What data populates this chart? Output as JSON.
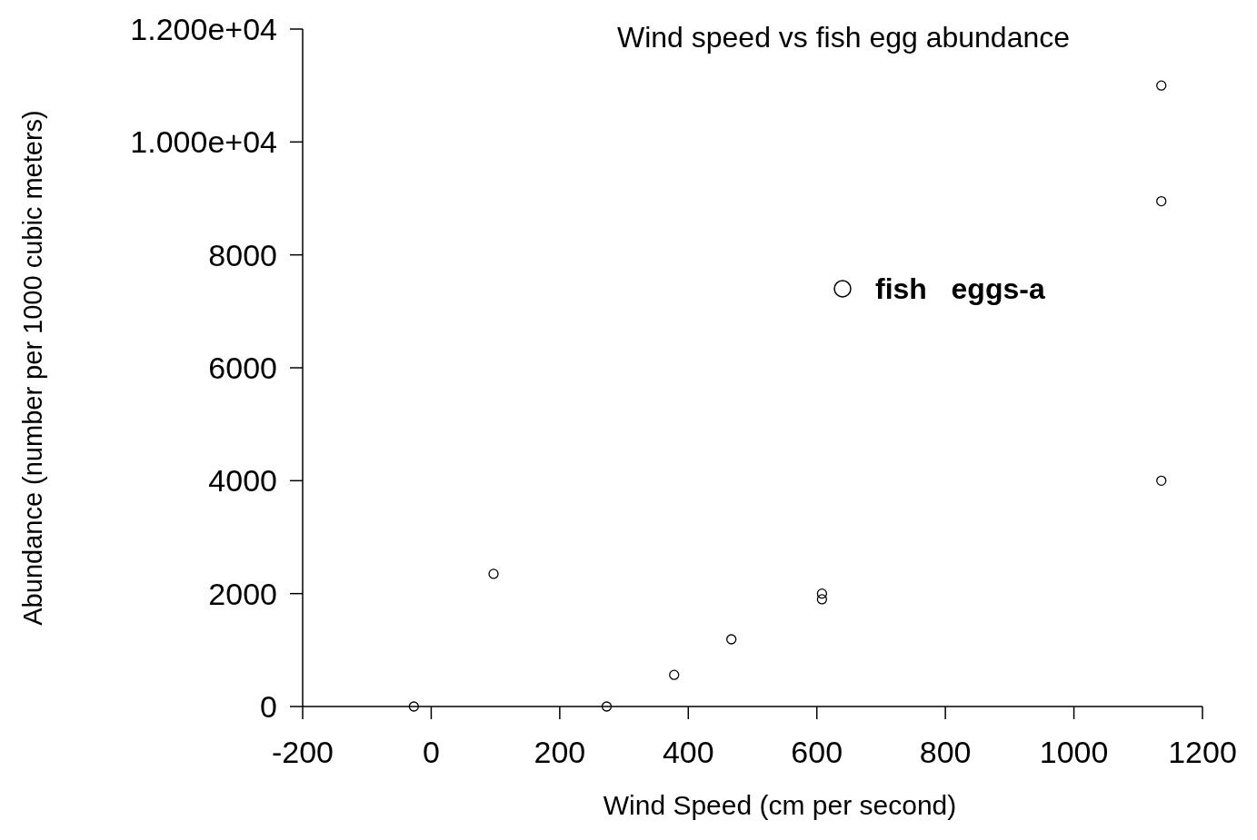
{
  "chart_data": {
    "type": "scatter",
    "title": "Wind speed vs fish egg abundance",
    "xlabel": "Wind Speed (cm per second)",
    "ylabel": "Abundance (number per 1000 cubic meters)",
    "xlim": [
      -200,
      1200
    ],
    "xticks": [
      -200,
      0,
      200,
      400,
      600,
      800,
      1000,
      1200
    ],
    "ylim": [
      0,
      12000
    ],
    "yticks": [
      0,
      2000,
      4000,
      6000,
      8000,
      {
        "value": 10000,
        "label": "1.000e+04"
      },
      {
        "value": 12000,
        "label": "1.200e+04"
      }
    ],
    "grid": false,
    "legend": "right",
    "marker": "circle",
    "series": [
      {
        "name": "fish   eggs-a",
        "color": "#000000",
        "x": [
          -27,
          97,
          273,
          378,
          467,
          608,
          608,
          1136,
          1136,
          1136
        ],
        "values": [
          0,
          2350,
          0,
          560,
          1190,
          2000,
          1900,
          4000,
          8950,
          11000
        ]
      }
    ]
  }
}
